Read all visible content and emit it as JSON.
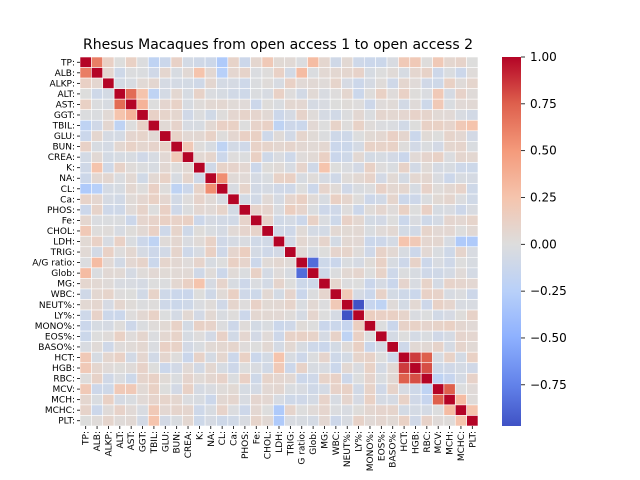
{
  "chart_data": {
    "type": "heatmap",
    "title": "Rhesus Macaques from open access 1 to open access 2",
    "variables": [
      "TP",
      "ALB",
      "ALKP",
      "ALT",
      "AST",
      "GGT",
      "TBIL",
      "GLU",
      "BUN",
      "CREA",
      "K",
      "NA",
      "CL",
      "Ca",
      "PHOS",
      "Fe",
      "CHOL",
      "LDH",
      "TRIG",
      "A/G ratio",
      "Glob",
      "MG",
      "WBC",
      "NEUT%",
      "LY%",
      "MONO%",
      "EOS%",
      "BASO%",
      "HCT",
      "HGB",
      "RBC",
      "MCV",
      "MCH",
      "MCHC",
      "PLT"
    ],
    "y_tick_labels": [
      "TP:",
      "ALB:",
      "ALKP:",
      "ALT:",
      "AST:",
      "GGT:",
      "TBIL:",
      "GLU:",
      "BUN:",
      "CREA:",
      "K:",
      "NA:",
      "CL:",
      "Ca:",
      "PHOS:",
      "Fe:",
      "CHOL:",
      "LDH:",
      "TRIG:",
      "A/G ratio:",
      "Glob:",
      "MG:",
      "WBC:",
      "NEUT%:",
      "LY%:",
      "MONO%:",
      "EOS%:",
      "BASO%:",
      "HCT:",
      "HGB:",
      "RBC:",
      "MCV:",
      "MCH:",
      "MCHC:",
      "PLT:"
    ],
    "x_tick_labels": [
      "TP:",
      "ALB:",
      "ALKP:",
      "ALT:",
      "AST:",
      "GGT:",
      "TBIL:",
      "GLU:",
      "BUN:",
      "CREA:",
      "K:",
      "NA:",
      "CL:",
      "Ca:",
      "PHOS:",
      "Fe:",
      "CHOL:",
      "LDH:",
      "TRIG:",
      "G ratio:",
      "Glob:",
      "MG:",
      "WBC:",
      "NEUT%:",
      "LY%:",
      "MONO%:",
      "EOS%:",
      "BASO%:",
      "HCT:",
      "HGB:",
      "RBC:",
      "MCV:",
      "MCH:",
      "MCHC:",
      "PLT:"
    ],
    "colormap": "coolwarm",
    "colorbar_range": [
      -1.0,
      1.0
    ],
    "colorbar_ticks": [
      "1.00",
      "0.75",
      "0.50",
      "0.25",
      "0.00",
      "−0.25",
      "−0.50",
      "−0.75"
    ],
    "colorbar_tick_values": [
      1.0,
      0.75,
      0.5,
      0.25,
      0.0,
      -0.25,
      -0.5,
      -0.75
    ],
    "colorbar_min_shown": -0.97,
    "grid_lines": "white",
    "notable_correlations": [
      {
        "a": "TP",
        "b": "ALB",
        "value": 0.62
      },
      {
        "a": "TP",
        "b": "Glob",
        "value": 0.3
      },
      {
        "a": "ALT",
        "b": "AST",
        "value": 0.7
      },
      {
        "a": "AST",
        "b": "GGT",
        "value": 0.35
      },
      {
        "a": "ALT",
        "b": "GGT",
        "value": 0.25
      },
      {
        "a": "NA",
        "b": "CL",
        "value": 0.55
      },
      {
        "a": "A/G ratio",
        "b": "Glob",
        "value": -0.85
      },
      {
        "a": "ALB",
        "b": "A/G ratio",
        "value": 0.3
      },
      {
        "a": "NEUT%",
        "b": "LY%",
        "value": -0.97
      },
      {
        "a": "HCT",
        "b": "HGB",
        "value": 0.85
      },
      {
        "a": "HCT",
        "b": "RBC",
        "value": 0.75
      },
      {
        "a": "HGB",
        "b": "RBC",
        "value": 0.8
      },
      {
        "a": "MCV",
        "b": "MCH",
        "value": 0.75
      },
      {
        "a": "MCH",
        "b": "MCHC",
        "value": 0.3
      },
      {
        "a": "MCV",
        "b": "RBC",
        "value": -0.2
      },
      {
        "a": "MCH",
        "b": "RBC",
        "value": -0.15
      },
      {
        "a": "LDH",
        "b": "PLT",
        "value": -0.3
      },
      {
        "a": "LDH",
        "b": "MCHC",
        "value": -0.3
      },
      {
        "a": "CL",
        "b": "TP",
        "value": -0.3
      },
      {
        "a": "CL",
        "b": "ALB",
        "value": -0.25
      },
      {
        "a": "CL",
        "b": "BUN",
        "value": -0.2
      },
      {
        "a": "TBIL",
        "b": "TP",
        "value": -0.2
      },
      {
        "a": "TBIL",
        "b": "ALT",
        "value": -0.2
      },
      {
        "a": "LDH",
        "b": "TBIL",
        "value": -0.2
      },
      {
        "a": "K",
        "b": "ALB",
        "value": 0.25
      },
      {
        "a": "K",
        "b": "MG",
        "value": 0.25
      },
      {
        "a": "BUN",
        "b": "CREA",
        "value": 0.2
      },
      {
        "a": "CHOL",
        "b": "TP",
        "value": 0.2
      },
      {
        "a": "HCT",
        "b": "LDH",
        "value": 0.25
      },
      {
        "a": "HGB",
        "b": "LDH",
        "value": 0.2
      },
      {
        "a": "HCT",
        "b": "TP",
        "value": 0.2
      },
      {
        "a": "HGB",
        "b": "TP",
        "value": 0.2
      },
      {
        "a": "MCV",
        "b": "TP",
        "value": 0.2
      },
      {
        "a": "MCV",
        "b": "ALT",
        "value": 0.2
      },
      {
        "a": "MCV",
        "b": "AST",
        "value": 0.2
      },
      {
        "a": "MCHC",
        "b": "TBIL",
        "value": 0.2
      },
      {
        "a": "PLT",
        "b": "TBIL",
        "value": 0.25
      },
      {
        "a": "PLT",
        "b": "MCHC",
        "value": 0.25
      },
      {
        "a": "TRIG",
        "b": "PHOS",
        "value": 0.15
      },
      {
        "a": "WBC",
        "b": "NEUT%",
        "value": 0.2
      },
      {
        "a": "MONO%",
        "b": "NEUT%",
        "value": -0.15
      },
      {
        "a": "EOS%",
        "b": "NEUT%",
        "value": -0.2
      },
      {
        "a": "LY%",
        "b": "MONO%",
        "value": 0.15
      }
    ]
  }
}
